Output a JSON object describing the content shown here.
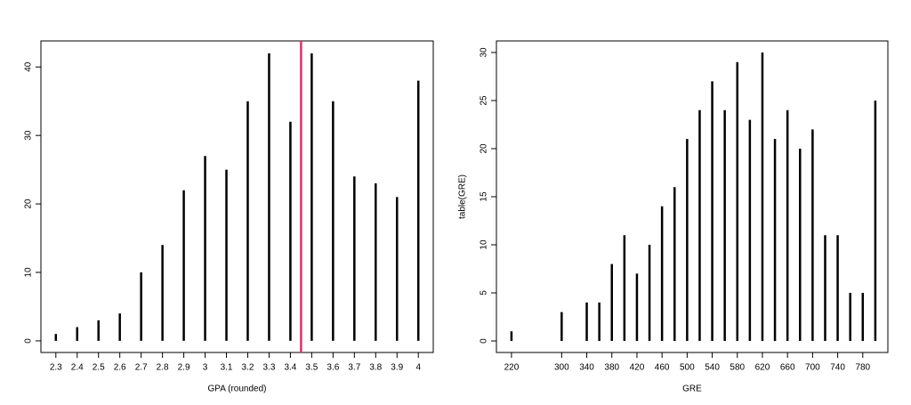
{
  "chart_data": [
    {
      "type": "bar",
      "xlabel": "GPA (rounded)",
      "x": [
        2.3,
        2.4,
        2.5,
        2.6,
        2.7,
        2.8,
        2.9,
        3,
        3.1,
        3.2,
        3.3,
        3.4,
        3.5,
        3.6,
        3.7,
        3.8,
        3.9,
        4
      ],
      "values": [
        1,
        2,
        3,
        4,
        10,
        14,
        22,
        27,
        25,
        35,
        42,
        32,
        42,
        35,
        24,
        23,
        21,
        38
      ],
      "color": "#000000",
      "xlim": [
        2.23,
        4.07
      ],
      "xticks": [
        2.3,
        2.4,
        2.5,
        2.6,
        2.7,
        2.8,
        2.9,
        3,
        3.1,
        3.2,
        3.3,
        3.4,
        3.5,
        3.6,
        3.7,
        3.8,
        3.9,
        4
      ],
      "ylim": [
        -1.7,
        43.8
      ],
      "yticks": [
        0,
        10,
        20,
        30,
        40
      ],
      "vline": {
        "value": 3.45,
        "color": "#e0306a"
      }
    },
    {
      "type": "bar",
      "xlabel": "GRE",
      "ylabel": "table(GRE)",
      "x": [
        220,
        300,
        340,
        360,
        380,
        400,
        420,
        440,
        460,
        480,
        500,
        520,
        540,
        560,
        580,
        600,
        620,
        640,
        660,
        680,
        700,
        720,
        740,
        760,
        780,
        800
      ],
      "values": [
        1,
        3,
        4,
        4,
        8,
        11,
        7,
        10,
        14,
        16,
        21,
        24,
        27,
        24,
        29,
        23,
        30,
        21,
        24,
        20,
        22,
        11,
        11,
        5,
        5,
        25
      ],
      "color": "#000000",
      "xlim": [
        196,
        820
      ],
      "xticks": [
        220,
        300,
        340,
        380,
        420,
        460,
        500,
        540,
        580,
        620,
        660,
        700,
        740,
        780
      ],
      "ylim": [
        -1.2,
        31.2
      ],
      "yticks": [
        0,
        5,
        10,
        15,
        20,
        25,
        30
      ]
    }
  ]
}
